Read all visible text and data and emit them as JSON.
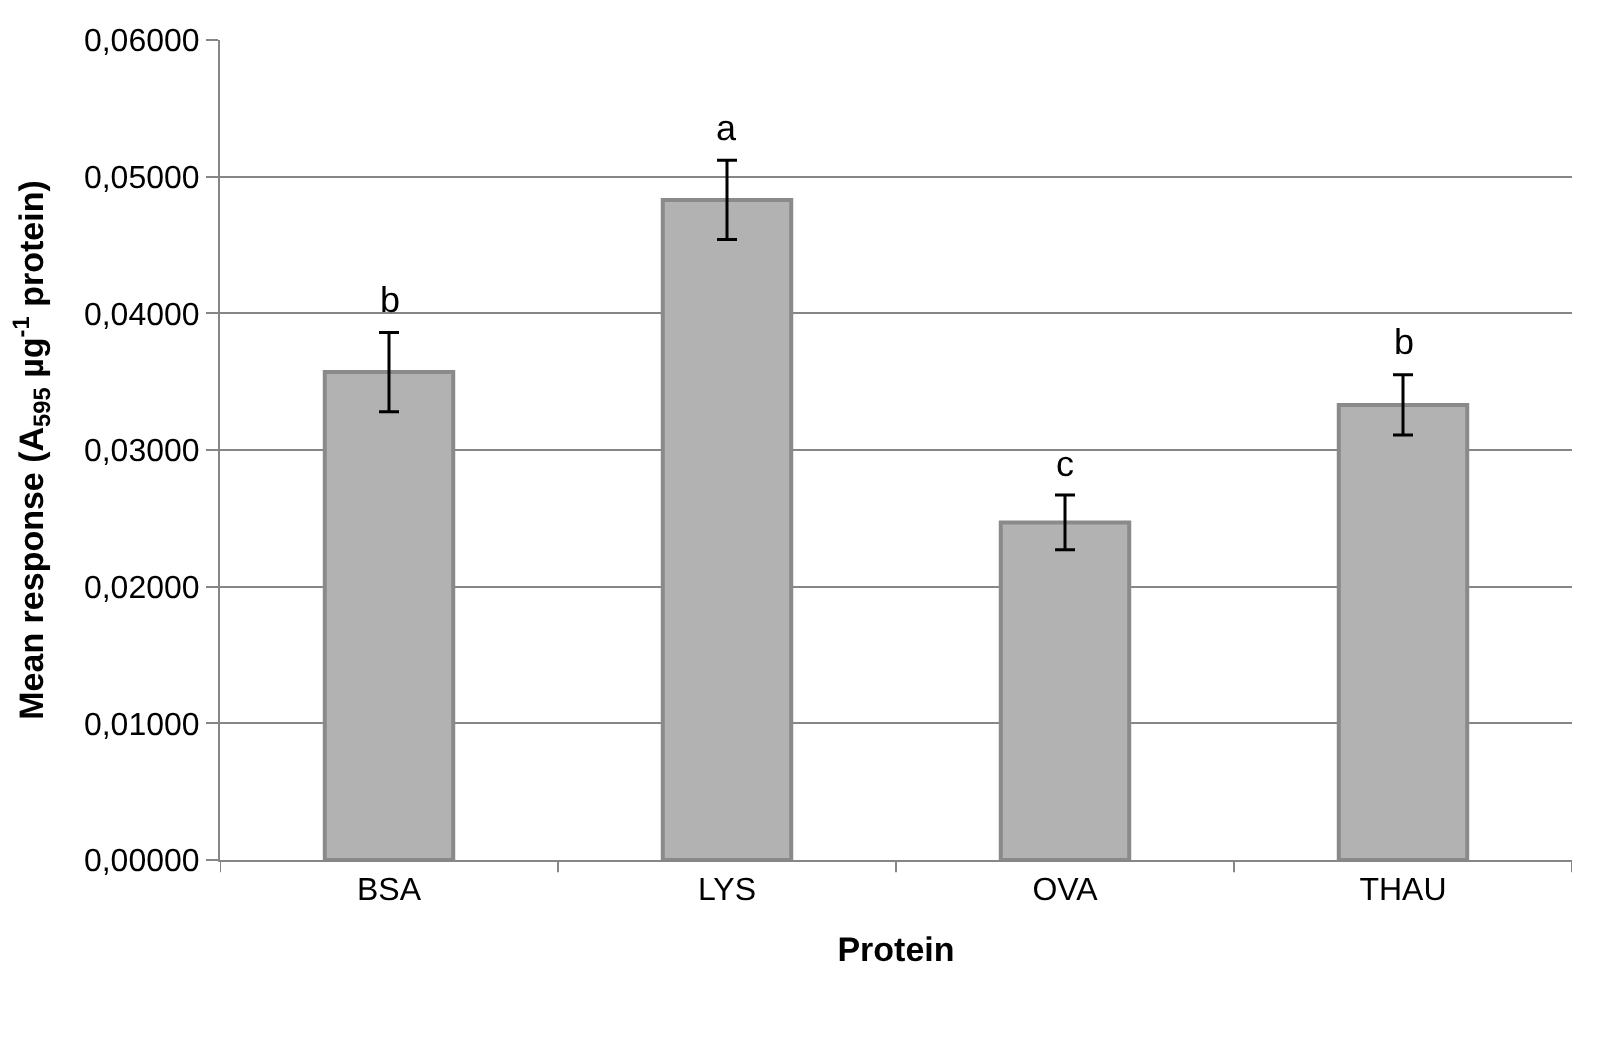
{
  "chart_data": {
    "type": "bar",
    "xlabel": "Protein",
    "ylabel": "Mean response (A$_{595}$ µg$^{-1}$ protein)",
    "categories": [
      "BSA",
      "LYS",
      "OVA",
      "THAU"
    ],
    "values": [
      0.0357,
      0.0483,
      0.0247,
      0.0333
    ],
    "errors": [
      0.0029,
      0.0029,
      0.002,
      0.0022
    ],
    "color": "#b2b2b2",
    "ylim": [
      0,
      0.06
    ],
    "yticks": [
      {
        "value": 0,
        "label": "0,00000"
      },
      {
        "value": 0.01,
        "label": "0,01000"
      },
      {
        "value": 0.02,
        "label": "0,02000"
      },
      {
        "value": 0.03,
        "label": "0,03000"
      },
      {
        "value": 0.04,
        "label": "0,04000"
      },
      {
        "value": 0.05,
        "label": "0,05000"
      },
      {
        "value": 0.06,
        "label": "0,06000"
      }
    ],
    "grid": "y",
    "annotations": [
      "b",
      "a",
      "c",
      "b"
    ]
  }
}
